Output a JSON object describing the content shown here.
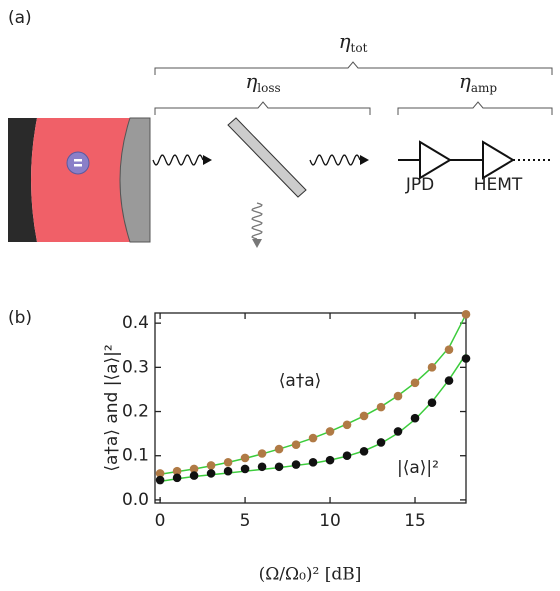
{
  "panel_a": {
    "label": "(a)",
    "efficiencies": [
      {
        "symbol": "η",
        "sub": "tot"
      },
      {
        "symbol": "η",
        "sub": "loss"
      },
      {
        "symbol": "η",
        "sub": "amp"
      }
    ],
    "amplifiers": [
      "JPD",
      "HEMT"
    ]
  },
  "chart_data": {
    "type": "scatter",
    "panel_label": "(b)",
    "x_label": "(Ω/Ω₀)² [dB]",
    "y_label": "⟨a†a⟩ and |⟨a⟩|²",
    "x": [
      0,
      1,
      2,
      3,
      4,
      5,
      6,
      7,
      8,
      9,
      10,
      11,
      12,
      13,
      14,
      15,
      16,
      17,
      18
    ],
    "series": [
      {
        "name": "⟨a†a⟩",
        "color": "#b07a45",
        "fit_color": "#3ccc3c",
        "values": [
          0.06,
          0.065,
          0.07,
          0.078,
          0.085,
          0.095,
          0.105,
          0.115,
          0.125,
          0.14,
          0.155,
          0.17,
          0.19,
          0.21,
          0.235,
          0.265,
          0.3,
          0.34,
          0.42
        ],
        "fit": [
          0.058,
          0.064,
          0.07,
          0.077,
          0.085,
          0.094,
          0.104,
          0.115,
          0.127,
          0.14,
          0.155,
          0.172,
          0.19,
          0.211,
          0.236,
          0.265,
          0.3,
          0.345,
          0.42
        ]
      },
      {
        "name": "|⟨a⟩|²",
        "color": "#111111",
        "fit_color": "#3ccc3c",
        "values": [
          0.045,
          0.05,
          0.055,
          0.06,
          0.065,
          0.07,
          0.075,
          0.075,
          0.08,
          0.085,
          0.09,
          0.1,
          0.11,
          0.13,
          0.155,
          0.185,
          0.22,
          0.27,
          0.32
        ],
        "fit": [
          0.042,
          0.048,
          0.053,
          0.057,
          0.061,
          0.065,
          0.069,
          0.073,
          0.078,
          0.083,
          0.09,
          0.099,
          0.111,
          0.128,
          0.151,
          0.182,
          0.222,
          0.272,
          0.33
        ]
      }
    ],
    "xlim": [
      -0.3,
      18
    ],
    "ylim": [
      -0.007,
      0.423
    ],
    "xticks": [
      0,
      5,
      10,
      15
    ],
    "yticks": [
      {
        "value": 0,
        "label": "0.0"
      },
      0.1,
      0.2,
      0.3,
      0.4
    ]
  }
}
